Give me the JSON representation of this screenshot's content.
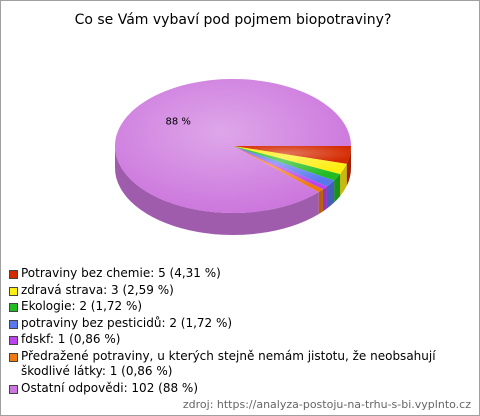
{
  "chart_data": {
    "type": "pie",
    "title": "Co se Vám vybaví pod pojmem biopotraviny?",
    "categories": [
      "Potraviny bez chemie: 5 (4,31 %)",
      "zdravá strava: 3 (2,59 %)",
      "Ekologie: 2 (1,72 %)",
      "potraviny bez pesticidů: 2 (1,72 %)",
      "fdskf: 1 (0,86 %)",
      "Předražené potraviny, u kterých stejně nemám jistotu, že neobsahují škodlivé látky: 1 (0,86 %)",
      "Ostatní odpovědi: 102 (88 %)"
    ],
    "values": [
      5,
      3,
      2,
      2,
      1,
      1,
      102
    ],
    "value_labels": [
      null,
      null,
      null,
      null,
      null,
      null,
      "88 %"
    ],
    "colors": [
      "#d42a00",
      "#ffee11",
      "#22bb22",
      "#5a78ee",
      "#bb44ee",
      "#ee7a10",
      "#cc77dd"
    ],
    "source": "zdroj: https://analyza-postoju-na-trhu-s-bi.vyplnto.cz"
  }
}
